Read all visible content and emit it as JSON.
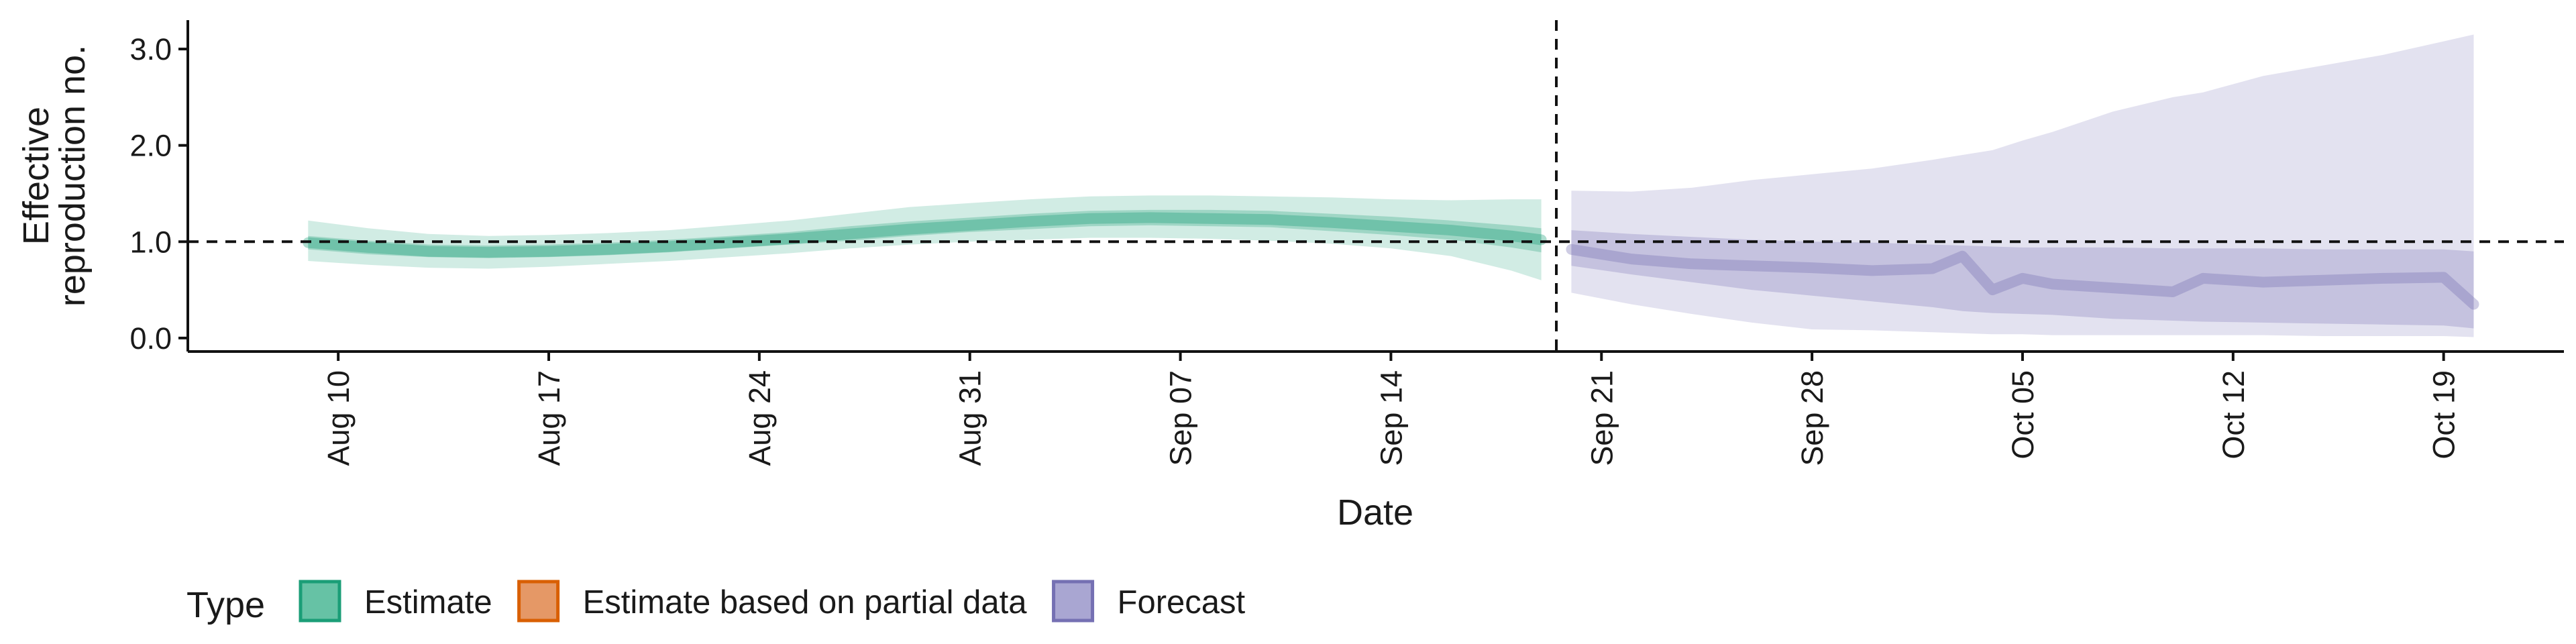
{
  "chart_data": {
    "type": "area",
    "title": "",
    "xlabel": "Date",
    "ylabel_lines": [
      "Effective",
      "reproduction no."
    ],
    "x_ticks": [
      "Aug 10",
      "Aug 17",
      "Aug 24",
      "Aug 31",
      "Sep 07",
      "Sep 14",
      "Sep 21",
      "Sep 28",
      "Oct 05",
      "Oct 12",
      "Oct 19"
    ],
    "y_ticks": [
      "0.0",
      "1.0",
      "2.0",
      "3.0"
    ],
    "xlim": [
      "2020-08-05",
      "2020-10-23"
    ],
    "ylim": [
      -0.14,
      3.3
    ],
    "reference_line_y": 1.0,
    "forecast_start": "2020-09-20",
    "legend": {
      "position": "bottom-left",
      "title": "Type",
      "items": [
        {
          "label": "Estimate",
          "fill": "#66C2A5",
          "stroke": "#1B9E77"
        },
        {
          "label": "Estimate based on partial data",
          "fill": "#E59866",
          "stroke": "#D95F02"
        },
        {
          "label": "Forecast",
          "fill": "#A9A6D2",
          "stroke": "#7570B3"
        }
      ]
    },
    "series": [
      {
        "name": "Estimate",
        "color": "#1B9E77",
        "dates": [
          "2020-08-09",
          "2020-08-11",
          "2020-08-13",
          "2020-08-15",
          "2020-08-17",
          "2020-08-19",
          "2020-08-21",
          "2020-08-23",
          "2020-08-25",
          "2020-08-27",
          "2020-08-29",
          "2020-08-31",
          "2020-09-02",
          "2020-09-04",
          "2020-09-06",
          "2020-09-08",
          "2020-09-10",
          "2020-09-12",
          "2020-09-14",
          "2020-09-16",
          "2020-09-18",
          "2020-09-19"
        ],
        "median": [
          0.99,
          0.94,
          0.9,
          0.89,
          0.9,
          0.92,
          0.95,
          0.99,
          1.03,
          1.08,
          1.13,
          1.17,
          1.21,
          1.24,
          1.25,
          1.24,
          1.23,
          1.2,
          1.16,
          1.12,
          1.06,
          1.02
        ],
        "lower_90": [
          0.8,
          0.76,
          0.73,
          0.72,
          0.74,
          0.77,
          0.8,
          0.84,
          0.88,
          0.93,
          0.97,
          1.0,
          1.02,
          1.04,
          1.04,
          1.03,
          1.01,
          0.98,
          0.93,
          0.85,
          0.7,
          0.6
        ],
        "upper_90": [
          1.22,
          1.14,
          1.08,
          1.06,
          1.07,
          1.09,
          1.12,
          1.17,
          1.22,
          1.29,
          1.36,
          1.4,
          1.44,
          1.47,
          1.48,
          1.48,
          1.47,
          1.46,
          1.44,
          1.43,
          1.44,
          1.44
        ],
        "lower_50": [
          0.92,
          0.87,
          0.84,
          0.83,
          0.84,
          0.86,
          0.89,
          0.93,
          0.97,
          1.01,
          1.06,
          1.1,
          1.13,
          1.16,
          1.17,
          1.16,
          1.15,
          1.11,
          1.07,
          1.02,
          0.94,
          0.89
        ],
        "upper_50": [
          1.06,
          1.01,
          0.97,
          0.96,
          0.97,
          0.99,
          1.02,
          1.06,
          1.1,
          1.16,
          1.21,
          1.25,
          1.29,
          1.32,
          1.33,
          1.33,
          1.32,
          1.29,
          1.26,
          1.22,
          1.17,
          1.14
        ]
      },
      {
        "name": "Forecast",
        "color": "#7570B3",
        "dates": [
          "2020-09-20",
          "2020-09-22",
          "2020-09-24",
          "2020-09-26",
          "2020-09-28",
          "2020-09-30",
          "2020-10-02",
          "2020-10-03",
          "2020-10-04",
          "2020-10-05",
          "2020-10-06",
          "2020-10-08",
          "2020-10-10",
          "2020-10-11",
          "2020-10-13",
          "2020-10-15",
          "2020-10-17",
          "2020-10-19",
          "2020-10-20"
        ],
        "median": [
          0.92,
          0.82,
          0.77,
          0.75,
          0.73,
          0.7,
          0.72,
          0.85,
          0.5,
          0.62,
          0.56,
          0.52,
          0.48,
          0.62,
          0.58,
          0.6,
          0.62,
          0.63,
          0.35
        ],
        "lower_90": [
          0.47,
          0.35,
          0.25,
          0.16,
          0.09,
          0.08,
          0.06,
          0.05,
          0.04,
          0.04,
          0.03,
          0.03,
          0.03,
          0.03,
          0.03,
          0.02,
          0.02,
          0.02,
          0.01
        ],
        "upper_90": [
          1.53,
          1.52,
          1.56,
          1.64,
          1.7,
          1.76,
          1.85,
          1.9,
          1.95,
          2.05,
          2.14,
          2.35,
          2.5,
          2.55,
          2.72,
          2.83,
          2.94,
          3.08,
          3.15
        ],
        "lower_50": [
          0.75,
          0.66,
          0.58,
          0.5,
          0.44,
          0.38,
          0.32,
          0.28,
          0.26,
          0.25,
          0.24,
          0.2,
          0.18,
          0.17,
          0.16,
          0.15,
          0.14,
          0.13,
          0.1
        ],
        "upper_50": [
          1.12,
          1.08,
          1.05,
          1.02,
          1.0,
          0.99,
          0.97,
          0.96,
          0.95,
          0.94,
          0.94,
          0.94,
          0.93,
          0.93,
          0.93,
          0.92,
          0.92,
          0.92,
          0.9
        ]
      }
    ]
  }
}
